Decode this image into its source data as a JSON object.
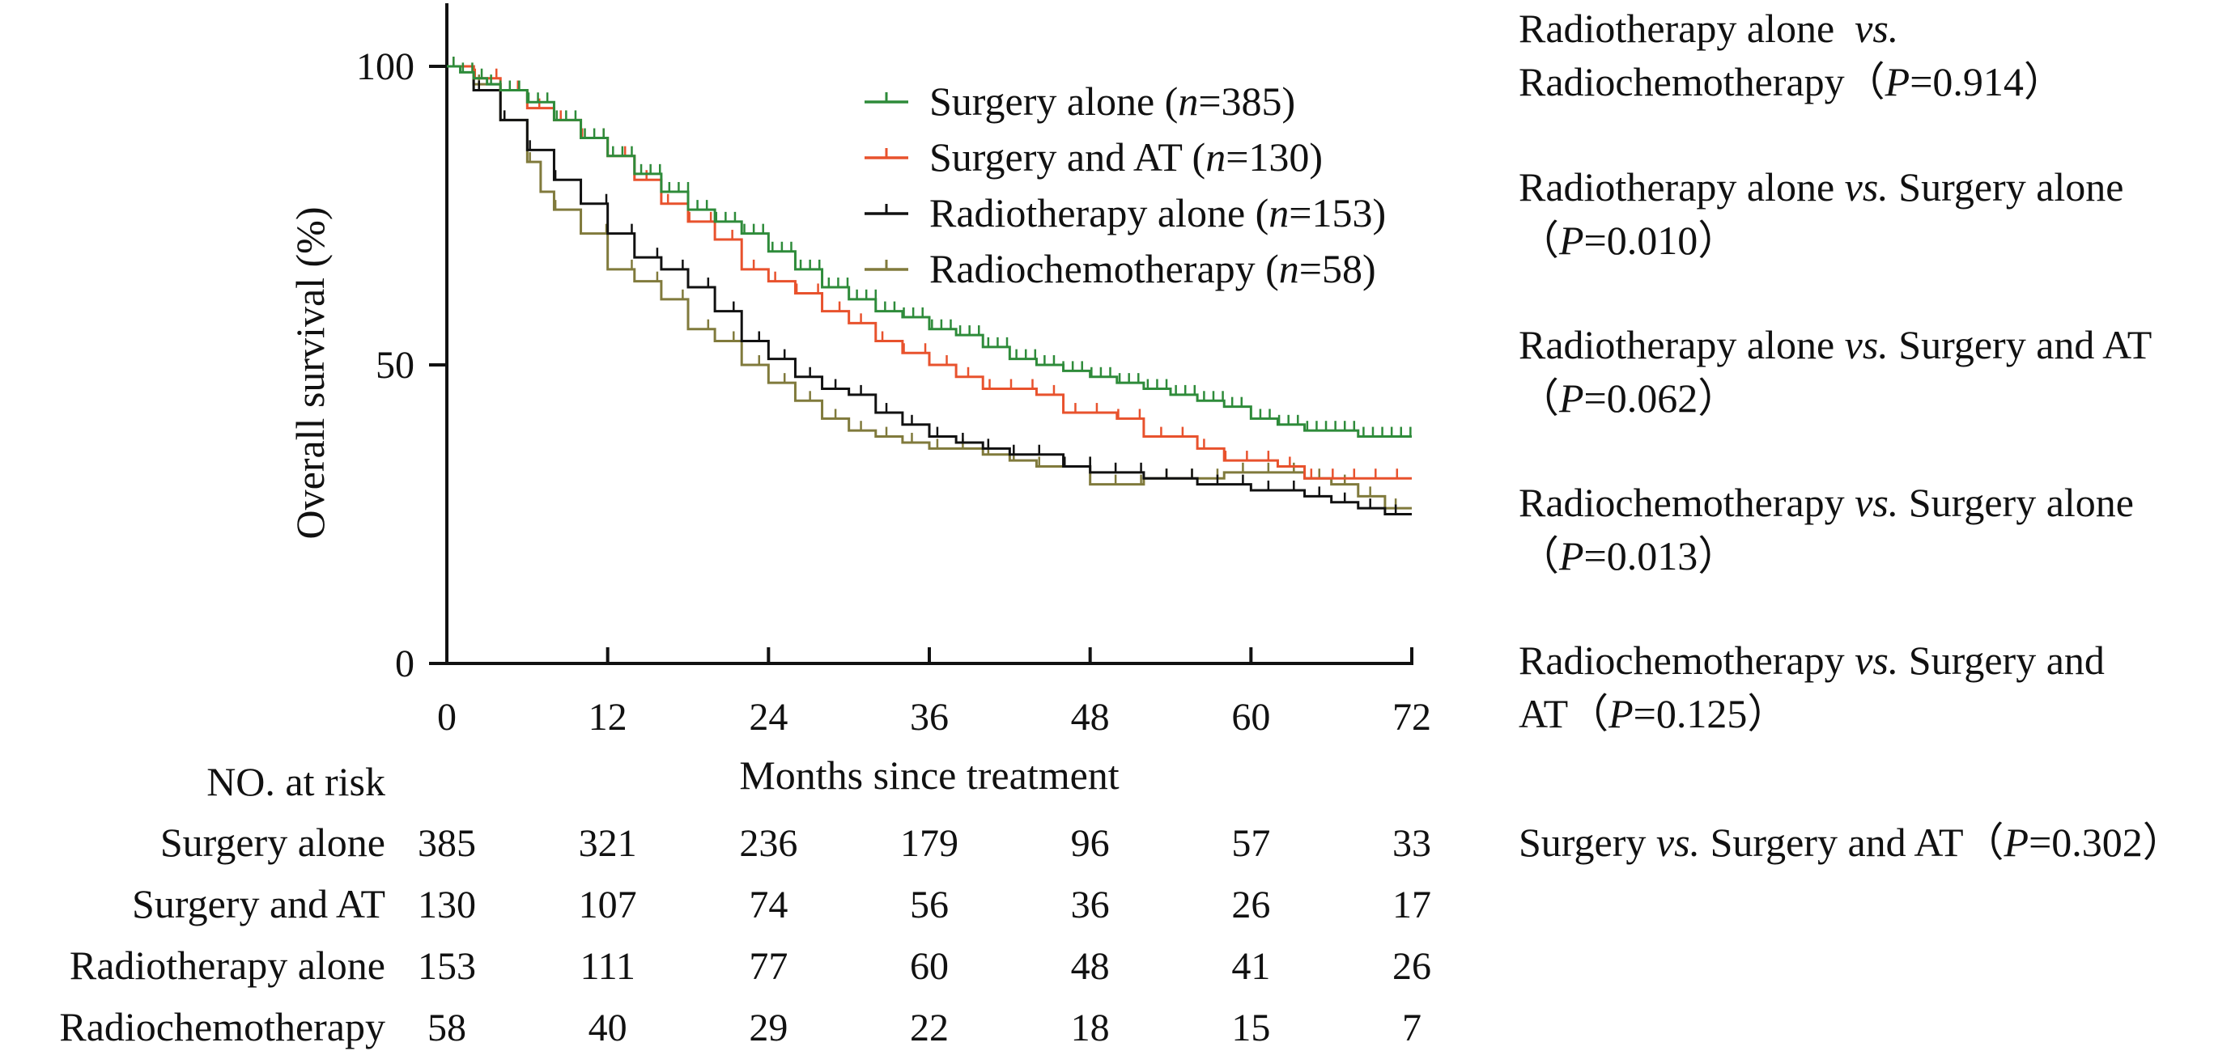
{
  "chart_data": {
    "type": "line",
    "subtype": "kaplan-meier",
    "xlabel": "Months since treatment",
    "ylabel": "Overall survival (%)",
    "xlim": [
      0,
      72
    ],
    "ylim": [
      0,
      100
    ],
    "x_ticks": [
      0,
      12,
      24,
      36,
      48,
      60,
      72
    ],
    "y_ticks": [
      0,
      50,
      100
    ],
    "grid": false,
    "legend_position": "top-right",
    "series": [
      {
        "name": "Surgery alone",
        "n_label": "n=385",
        "color": "#2e8b3a",
        "points": [
          [
            0,
            100
          ],
          [
            1,
            99
          ],
          [
            2,
            98
          ],
          [
            3,
            97
          ],
          [
            4,
            96
          ],
          [
            6,
            94
          ],
          [
            8,
            91
          ],
          [
            10,
            88
          ],
          [
            12,
            85
          ],
          [
            14,
            82
          ],
          [
            16,
            79
          ],
          [
            18,
            76
          ],
          [
            20,
            74
          ],
          [
            22,
            72
          ],
          [
            24,
            69
          ],
          [
            26,
            66
          ],
          [
            28,
            63
          ],
          [
            30,
            61
          ],
          [
            32,
            59
          ],
          [
            34,
            58
          ],
          [
            36,
            56
          ],
          [
            38,
            55
          ],
          [
            40,
            53
          ],
          [
            42,
            51
          ],
          [
            44,
            50
          ],
          [
            46,
            49
          ],
          [
            48,
            48
          ],
          [
            50,
            47
          ],
          [
            52,
            46
          ],
          [
            54,
            45
          ],
          [
            56,
            44
          ],
          [
            58,
            43
          ],
          [
            60,
            41
          ],
          [
            62,
            40
          ],
          [
            64,
            39
          ],
          [
            66,
            39
          ],
          [
            68,
            38
          ],
          [
            70,
            38
          ],
          [
            72,
            38
          ]
        ]
      },
      {
        "name": "Surgery and AT",
        "n_label": "n=130",
        "color": "#e8522d",
        "points": [
          [
            0,
            100
          ],
          [
            2,
            98
          ],
          [
            4,
            96
          ],
          [
            6,
            93
          ],
          [
            8,
            91
          ],
          [
            10,
            88
          ],
          [
            12,
            85
          ],
          [
            14,
            81
          ],
          [
            16,
            77
          ],
          [
            18,
            74
          ],
          [
            20,
            71
          ],
          [
            22,
            66
          ],
          [
            24,
            64
          ],
          [
            26,
            62
          ],
          [
            28,
            59
          ],
          [
            30,
            57
          ],
          [
            32,
            54
          ],
          [
            34,
            52
          ],
          [
            36,
            50
          ],
          [
            38,
            48
          ],
          [
            40,
            46
          ],
          [
            42,
            46
          ],
          [
            44,
            45
          ],
          [
            46,
            42
          ],
          [
            48,
            42
          ],
          [
            50,
            41
          ],
          [
            52,
            38
          ],
          [
            54,
            38
          ],
          [
            56,
            36
          ],
          [
            58,
            34
          ],
          [
            60,
            34
          ],
          [
            62,
            33
          ],
          [
            64,
            31
          ],
          [
            66,
            31
          ],
          [
            68,
            31
          ],
          [
            70,
            31
          ],
          [
            72,
            31
          ]
        ]
      },
      {
        "name": "Radiotherapy alone",
        "n_label": "n=153",
        "color": "#111111",
        "points": [
          [
            0,
            100
          ],
          [
            2,
            96
          ],
          [
            4,
            91
          ],
          [
            6,
            86
          ],
          [
            8,
            81
          ],
          [
            10,
            77
          ],
          [
            12,
            72
          ],
          [
            14,
            68
          ],
          [
            16,
            66
          ],
          [
            18,
            63
          ],
          [
            20,
            59
          ],
          [
            22,
            54
          ],
          [
            24,
            51
          ],
          [
            26,
            48
          ],
          [
            28,
            46
          ],
          [
            30,
            45
          ],
          [
            32,
            42
          ],
          [
            34,
            40
          ],
          [
            36,
            38
          ],
          [
            38,
            37
          ],
          [
            40,
            36
          ],
          [
            42,
            35
          ],
          [
            44,
            35
          ],
          [
            46,
            33
          ],
          [
            48,
            32
          ],
          [
            50,
            32
          ],
          [
            52,
            31
          ],
          [
            54,
            31
          ],
          [
            56,
            30
          ],
          [
            58,
            30
          ],
          [
            60,
            29
          ],
          [
            62,
            29
          ],
          [
            64,
            28
          ],
          [
            66,
            27
          ],
          [
            68,
            26
          ],
          [
            70,
            25
          ],
          [
            72,
            25
          ]
        ]
      },
      {
        "name": "Radiochemotherapy",
        "n_label": "n=58",
        "color": "#807a3c",
        "points": [
          [
            0,
            100
          ],
          [
            2,
            97
          ],
          [
            4,
            91
          ],
          [
            6,
            84
          ],
          [
            7,
            79
          ],
          [
            8,
            76
          ],
          [
            10,
            72
          ],
          [
            12,
            66
          ],
          [
            14,
            64
          ],
          [
            16,
            61
          ],
          [
            18,
            56
          ],
          [
            20,
            54
          ],
          [
            22,
            50
          ],
          [
            24,
            47
          ],
          [
            26,
            44
          ],
          [
            28,
            41
          ],
          [
            30,
            39
          ],
          [
            32,
            38
          ],
          [
            34,
            37
          ],
          [
            36,
            36
          ],
          [
            38,
            36
          ],
          [
            40,
            35
          ],
          [
            42,
            34
          ],
          [
            44,
            33
          ],
          [
            46,
            33
          ],
          [
            48,
            30
          ],
          [
            50,
            30
          ],
          [
            52,
            31
          ],
          [
            54,
            31
          ],
          [
            56,
            31
          ],
          [
            58,
            32
          ],
          [
            60,
            32
          ],
          [
            62,
            32
          ],
          [
            64,
            31
          ],
          [
            66,
            30
          ],
          [
            68,
            28
          ],
          [
            70,
            26
          ],
          [
            72,
            26
          ]
        ]
      }
    ],
    "risk_table": {
      "title": "NO. at risk",
      "times": [
        0,
        12,
        24,
        36,
        48,
        60,
        72
      ],
      "rows": [
        {
          "label": "Surgery alone",
          "values": [
            "385",
            "321",
            "236",
            "179",
            "96",
            "57",
            "33"
          ]
        },
        {
          "label": "Surgery and AT",
          "values": [
            "130",
            "107",
            "74",
            "56",
            "36",
            "26",
            "17"
          ]
        },
        {
          "label": "Radiotherapy alone",
          "values": [
            "153",
            "111",
            "77",
            "60",
            "48",
            "41",
            "26"
          ]
        },
        {
          "label": "Radiochemotherapy",
          "values": [
            "58",
            "40",
            "29",
            "22",
            "18",
            "15",
            "7"
          ]
        }
      ]
    }
  },
  "comparisons": [
    {
      "a": "Radiotherapy alone",
      "vs": "vs.",
      "b": "Radiochemotherapy",
      "p_label": "P",
      "p_value": "=0.914"
    },
    {
      "a": "Radiotherapy alone",
      "vs": "vs.",
      "b": "Surgery alone",
      "p_label": "P",
      "p_value": "=0.010"
    },
    {
      "a": "Radiotherapy alone",
      "vs": "vs.",
      "b": "Surgery and AT",
      "p_label": "P",
      "p_value": "=0.062"
    },
    {
      "a": "Radiochemotherapy",
      "vs": "vs.",
      "b": "Surgery alone",
      "p_label": "P",
      "p_value": "=0.013"
    },
    {
      "a": "Radiochemotherapy",
      "vs": "vs.",
      "b": "Surgery and AT",
      "p_label": "P",
      "p_value": "=0.125"
    },
    {
      "a": "Surgery",
      "vs": "vs.",
      "b": "Surgery and AT",
      "p_label": "P",
      "p_value": "=0.302"
    }
  ]
}
